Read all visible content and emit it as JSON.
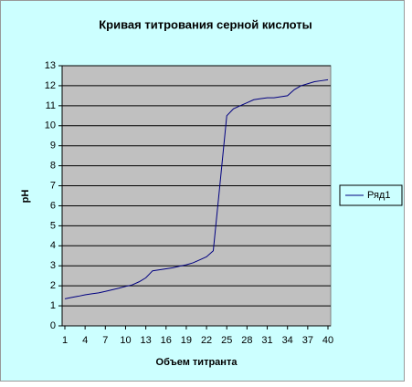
{
  "chart_data": {
    "type": "line",
    "title": "Кривая титрования серной кислоты",
    "x_label": "Объем титранта",
    "y_label": "pH",
    "x": [
      1,
      2,
      3,
      4,
      5,
      6,
      7,
      8,
      9,
      10,
      11,
      12,
      13,
      14,
      15,
      16,
      17,
      18,
      19,
      20,
      21,
      22,
      23,
      24,
      25,
      26,
      27,
      28,
      29,
      30,
      31,
      32,
      33,
      34,
      35,
      36,
      37,
      38,
      39,
      40
    ],
    "xlim": [
      1,
      40
    ],
    "xticks": [
      1,
      4,
      7,
      10,
      13,
      16,
      19,
      22,
      25,
      28,
      31,
      34,
      37,
      40
    ],
    "ylim": [
      0,
      13
    ],
    "yticks": [
      0,
      1,
      2,
      3,
      4,
      5,
      6,
      7,
      8,
      9,
      10,
      11,
      12,
      13
    ],
    "grid": true,
    "legend": "right",
    "series": [
      {
        "name": "Ряд1",
        "color": "#000080",
        "values": [
          1.35,
          1.42,
          1.48,
          1.55,
          1.6,
          1.65,
          1.72,
          1.8,
          1.88,
          1.97,
          2.05,
          2.2,
          2.4,
          2.75,
          2.8,
          2.85,
          2.9,
          2.98,
          3.05,
          3.15,
          3.3,
          3.45,
          3.75,
          7.1,
          10.5,
          10.85,
          11.0,
          11.15,
          11.3,
          11.35,
          11.4,
          11.4,
          11.45,
          11.5,
          11.8,
          12.0,
          12.1,
          12.2,
          12.25,
          12.3
        ]
      }
    ]
  }
}
